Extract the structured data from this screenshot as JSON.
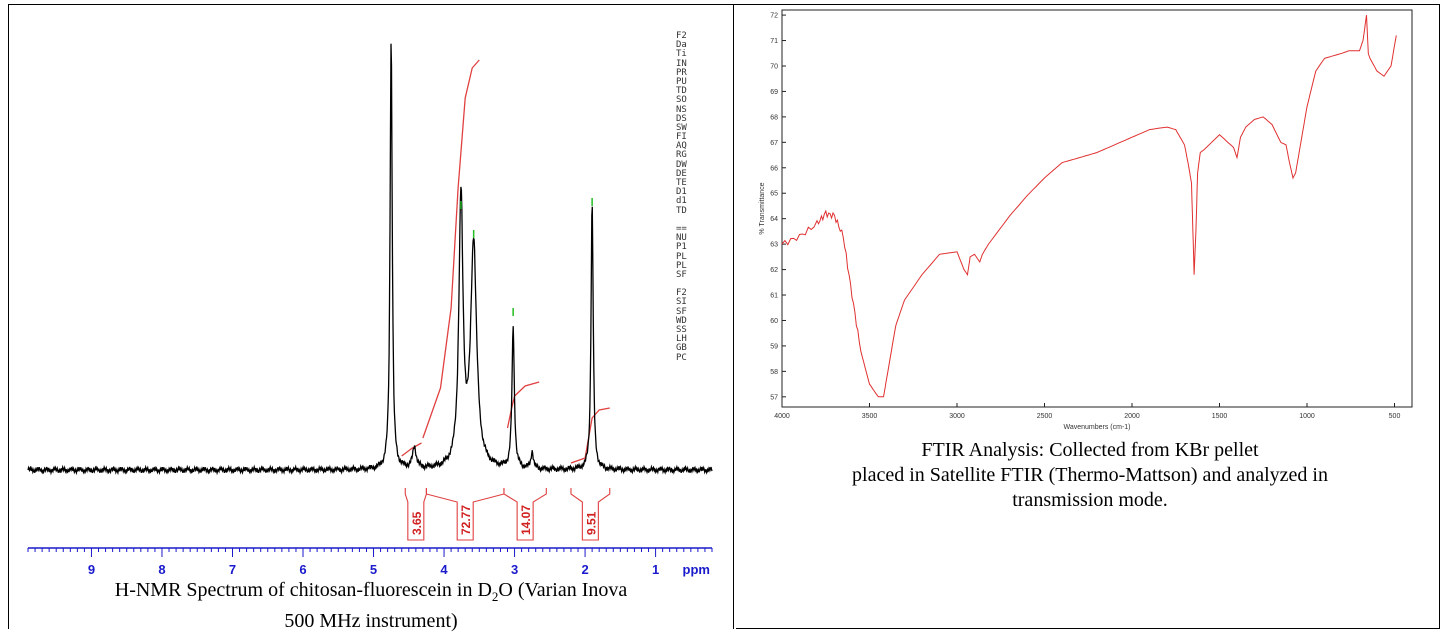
{
  "nmr": {
    "caption_pre": "H-NMR Spectrum of chitosan-fluorescein in D",
    "caption_sub": "2",
    "caption_post": "O (Varian Inova",
    "caption_line2": "500 MHz instrument)",
    "params": [
      "F2",
      "Da",
      "Ti",
      "IN",
      "PR",
      "PU",
      "TD",
      "SO",
      "NS",
      "DS",
      "SW",
      "FI",
      "AQ",
      "RG",
      "DW",
      "DE",
      "TE",
      "D1",
      "d1",
      "TD",
      "",
      "==",
      "NU",
      "P1",
      "PL",
      "PL",
      "SF",
      "",
      "F2",
      "SI",
      "SF",
      "WD",
      "SS",
      "LH",
      "GB",
      "PC"
    ],
    "colors": {
      "spectrum": "#000000",
      "integral": "#e04040",
      "peak_marker": "#22bb22",
      "axis": "#1a1acc"
    }
  },
  "ftir": {
    "caption_line1": "FTIR Analysis: Collected from KBr pellet",
    "caption_line2": "placed in Satellite FTIR (Thermo-Mattson) and analyzed in",
    "caption_line3": "transmission mode.",
    "colors": {
      "spectrum": "#e03030"
    }
  },
  "chart_data": [
    {
      "type": "line",
      "title": "",
      "xlabel": "ppm",
      "ylabel": "",
      "x_axis_reversed": true,
      "xlim": [
        9.9,
        0.2
      ],
      "x_ticks": [
        9,
        8,
        7,
        6,
        5,
        4,
        3,
        2,
        1
      ],
      "peaks": [
        {
          "x": 4.75,
          "rel_height": 1.0
        },
        {
          "x": 4.42,
          "rel_height": 0.05
        },
        {
          "x": 3.76,
          "rel_height": 0.62
        },
        {
          "x": 3.58,
          "rel_height": 0.52
        },
        {
          "x": 3.02,
          "rel_height": 0.33
        },
        {
          "x": 2.75,
          "rel_height": 0.04
        },
        {
          "x": 1.9,
          "rel_height": 0.62
        }
      ],
      "integrals": [
        {
          "label": "3.65",
          "from": 4.55,
          "to": 4.25
        },
        {
          "label": "72.77",
          "from": 4.25,
          "to": 3.15
        },
        {
          "label": "14.07",
          "from": 3.15,
          "to": 2.55
        },
        {
          "label": "9.51",
          "from": 2.2,
          "to": 1.65
        }
      ]
    },
    {
      "type": "line",
      "title": "",
      "xlabel": "Wavenumbers (cm-1)",
      "ylabel": "% Transmittance",
      "x_axis_reversed": true,
      "xlim": [
        4000,
        400
      ],
      "ylim": [
        56.6,
        72.2
      ],
      "x_ticks": [
        4000,
        3500,
        3000,
        2500,
        2000,
        1500,
        1000,
        500
      ],
      "y_ticks": [
        57,
        58,
        59,
        60,
        61,
        62,
        63,
        64,
        65,
        66,
        67,
        68,
        69,
        70,
        71,
        72
      ],
      "series": [
        {
          "x": [
            4000,
            3900,
            3800,
            3750,
            3700,
            3650,
            3600,
            3550,
            3500,
            3450,
            3420,
            3400,
            3350,
            3300,
            3200,
            3100,
            3000,
            2960,
            2940,
            2925,
            2900,
            2870,
            2855,
            2820,
            2700,
            2600,
            2500,
            2400,
            2300,
            2200,
            2100,
            2000,
            1900,
            1800,
            1750,
            1700,
            1680,
            1660,
            1645,
            1635,
            1625,
            1610,
            1590,
            1560,
            1500,
            1420,
            1400,
            1380,
            1350,
            1300,
            1250,
            1200,
            1150,
            1120,
            1100,
            1080,
            1065,
            1050,
            1000,
            950,
            900,
            850,
            800,
            760,
            700,
            680,
            660,
            650,
            640,
            600,
            560,
            520,
            490
          ],
          "y": [
            63.0,
            63.3,
            63.8,
            64.2,
            64.1,
            63.3,
            61.0,
            58.8,
            57.5,
            57.0,
            57.0,
            57.8,
            59.8,
            60.8,
            61.8,
            62.6,
            62.7,
            62.0,
            61.8,
            62.5,
            62.6,
            62.3,
            62.6,
            63.0,
            64.1,
            64.9,
            65.6,
            66.2,
            66.4,
            66.6,
            66.9,
            67.2,
            67.5,
            67.6,
            67.5,
            66.9,
            66.2,
            65.4,
            61.8,
            63.5,
            65.8,
            66.6,
            66.7,
            66.9,
            67.3,
            66.8,
            66.4,
            67.2,
            67.6,
            67.9,
            68.0,
            67.7,
            67.0,
            66.9,
            66.2,
            65.6,
            65.8,
            66.4,
            68.4,
            69.8,
            70.3,
            70.4,
            70.5,
            70.6,
            70.6,
            71.0,
            72.0,
            70.5,
            70.3,
            69.8,
            69.6,
            70.0,
            71.2
          ]
        }
      ]
    }
  ]
}
